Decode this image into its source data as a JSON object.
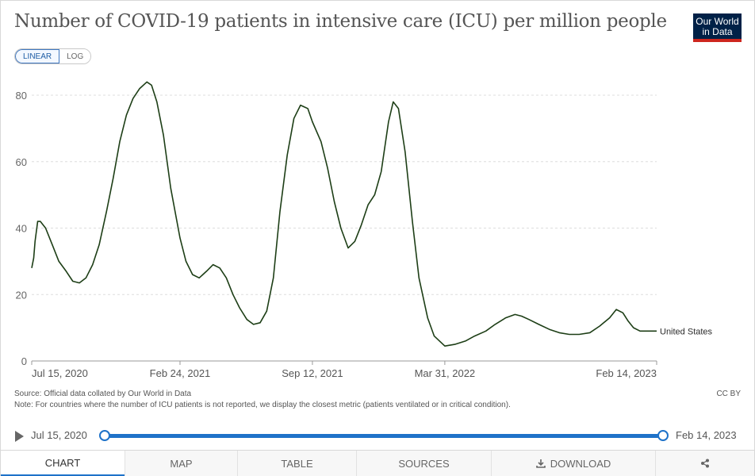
{
  "header": {
    "title": "Number of COVID-19 patients in intensive care (ICU) per million people",
    "logo_line1": "Our World",
    "logo_line2": "in Data"
  },
  "controls": {
    "scale_linear": "LINEAR",
    "scale_log": "LOG",
    "selected_scale": "LINEAR"
  },
  "colors": {
    "series": "#1d3e16",
    "accent": "#1e72c9",
    "logo_bg": "#002147",
    "logo_bar": "#ce261e"
  },
  "chart_data": {
    "type": "line",
    "title": "Number of COVID-19 patients in intensive care (ICU) per million people",
    "x_ticks": [
      "Jul 15, 2020",
      "Feb 24, 2021",
      "Sep 12, 2021",
      "Mar 31, 2022",
      "Feb 14, 2023"
    ],
    "y_ticks": [
      0,
      20,
      40,
      60,
      80
    ],
    "ylim": [
      0,
      85
    ],
    "xlim": [
      "2020-07-15",
      "2023-02-14"
    ],
    "grid": "horizontal dashed",
    "series": [
      {
        "name": "United States",
        "x": [
          "2020-07-15",
          "2020-07-18",
          "2020-07-20",
          "2020-07-24",
          "2020-07-28",
          "2020-08-05",
          "2020-08-15",
          "2020-08-25",
          "2020-09-05",
          "2020-09-15",
          "2020-09-25",
          "2020-10-05",
          "2020-10-15",
          "2020-10-25",
          "2020-11-05",
          "2020-11-15",
          "2020-11-25",
          "2020-12-05",
          "2020-12-15",
          "2020-12-25",
          "2021-01-05",
          "2021-01-12",
          "2021-01-20",
          "2021-01-30",
          "2021-02-10",
          "2021-02-24",
          "2021-03-05",
          "2021-03-15",
          "2021-03-25",
          "2021-04-05",
          "2021-04-15",
          "2021-04-25",
          "2021-05-05",
          "2021-05-15",
          "2021-05-25",
          "2021-06-05",
          "2021-06-15",
          "2021-06-25",
          "2021-07-05",
          "2021-07-15",
          "2021-07-25",
          "2021-08-05",
          "2021-08-15",
          "2021-08-25",
          "2021-09-05",
          "2021-09-12",
          "2021-09-25",
          "2021-10-05",
          "2021-10-15",
          "2021-10-25",
          "2021-11-05",
          "2021-11-15",
          "2021-11-25",
          "2021-12-05",
          "2021-12-15",
          "2021-12-25",
          "2022-01-05",
          "2022-01-12",
          "2022-01-20",
          "2022-01-30",
          "2022-02-10",
          "2022-02-20",
          "2022-03-05",
          "2022-03-15",
          "2022-03-31",
          "2022-04-15",
          "2022-05-01",
          "2022-05-15",
          "2022-06-01",
          "2022-06-15",
          "2022-07-01",
          "2022-07-15",
          "2022-07-25",
          "2022-08-05",
          "2022-08-20",
          "2022-09-05",
          "2022-09-20",
          "2022-10-05",
          "2022-10-20",
          "2022-11-05",
          "2022-11-20",
          "2022-12-05",
          "2022-12-15",
          "2022-12-25",
          "2023-01-02",
          "2023-01-10",
          "2023-01-20",
          "2023-02-01",
          "2023-02-14"
        ],
        "values": [
          28,
          31,
          36,
          42,
          42,
          40,
          35,
          30,
          27,
          24,
          23.5,
          25,
          29,
          35,
          45,
          55,
          66,
          74,
          79,
          82,
          84,
          83,
          78,
          68,
          52,
          37,
          30,
          26,
          25,
          27,
          29,
          28,
          25,
          20,
          16,
          12.5,
          11,
          11.5,
          15,
          25,
          45,
          62,
          73,
          77,
          76,
          72,
          66,
          58,
          48,
          40,
          34,
          36,
          41,
          47,
          50,
          57,
          72,
          78,
          76,
          63,
          42,
          25,
          13,
          7.5,
          4.5,
          5,
          6,
          7.5,
          9,
          11,
          13,
          14,
          13.5,
          12.5,
          11,
          9.5,
          8.5,
          8,
          8,
          8.5,
          10.5,
          13,
          15.5,
          14.5,
          12,
          10,
          9,
          9,
          9
        ]
      }
    ],
    "annotation": "United States"
  },
  "footer": {
    "source": "Source: Official data collated by Our World in Data",
    "note": "Note: For countries where the number of ICU patients is not reported, we display the closest metric (patients ventilated or in critical condition).",
    "license": "CC BY"
  },
  "timeline": {
    "start_label": "Jul 15, 2020",
    "end_label": "Feb 14, 2023"
  },
  "tabs": [
    {
      "label": "CHART",
      "active": true
    },
    {
      "label": "MAP",
      "active": false
    },
    {
      "label": "TABLE",
      "active": false
    },
    {
      "label": "SOURCES",
      "active": false
    },
    {
      "label": "DOWNLOAD",
      "active": false,
      "icon": "download-icon"
    },
    {
      "label": "",
      "active": false,
      "icon": "share-icon"
    }
  ]
}
